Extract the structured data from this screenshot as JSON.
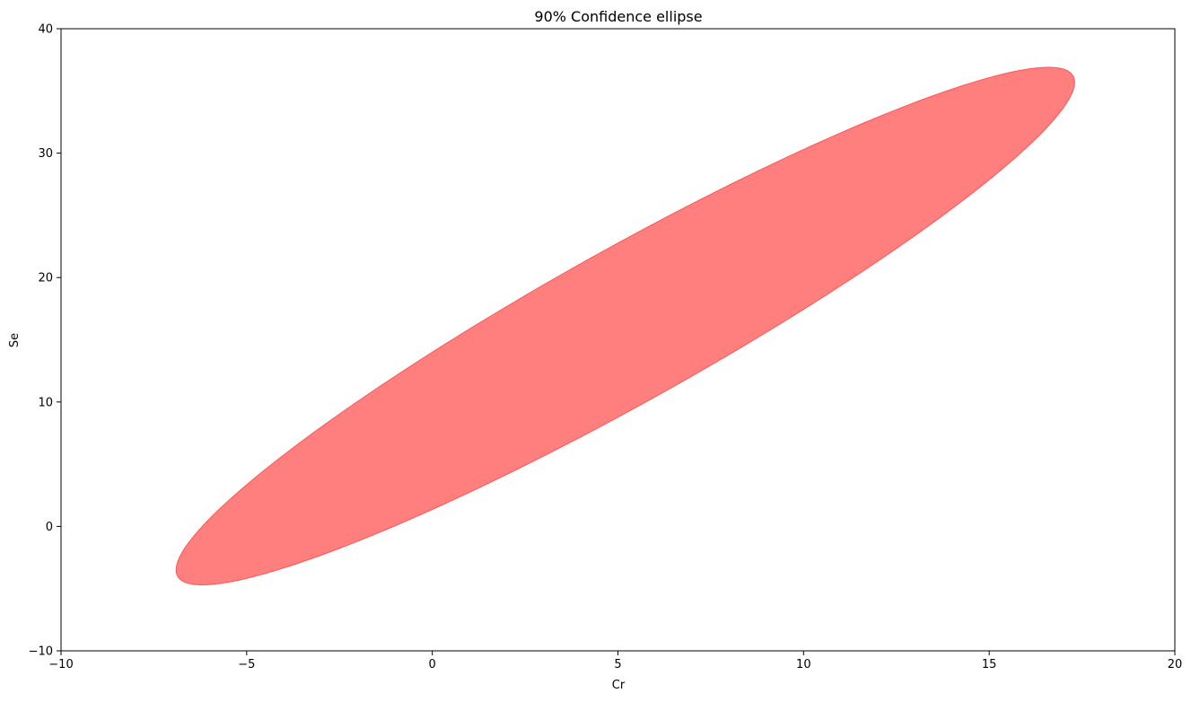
{
  "chart_data": {
    "type": "ellipse",
    "title": "90% Confidence ellipse",
    "xlabel": "Cr",
    "ylabel": "Se",
    "xlim": [
      -10,
      20
    ],
    "ylim": [
      -10,
      40
    ],
    "xticks": [
      -10,
      -5,
      0,
      5,
      10,
      15,
      20
    ],
    "xtick_labels": [
      "−10",
      "−5",
      "0",
      "5",
      "10",
      "15",
      "20"
    ],
    "yticks": [
      -10,
      0,
      10,
      20,
      30,
      40
    ],
    "ytick_labels": [
      "−10",
      "0",
      "10",
      "20",
      "30",
      "40"
    ],
    "grid": false,
    "ellipse": {
      "confidence": 0.9,
      "center": [
        5.2,
        16.1
      ],
      "extreme_points": [
        [
          -6.9,
          -3.6
        ],
        [
          -6.1,
          -4.7
        ],
        [
          17.2,
          35.9
        ],
        [
          16.5,
          37.0
        ]
      ],
      "fill_color": "#ff0000",
      "fill_opacity": 0.5
    }
  }
}
